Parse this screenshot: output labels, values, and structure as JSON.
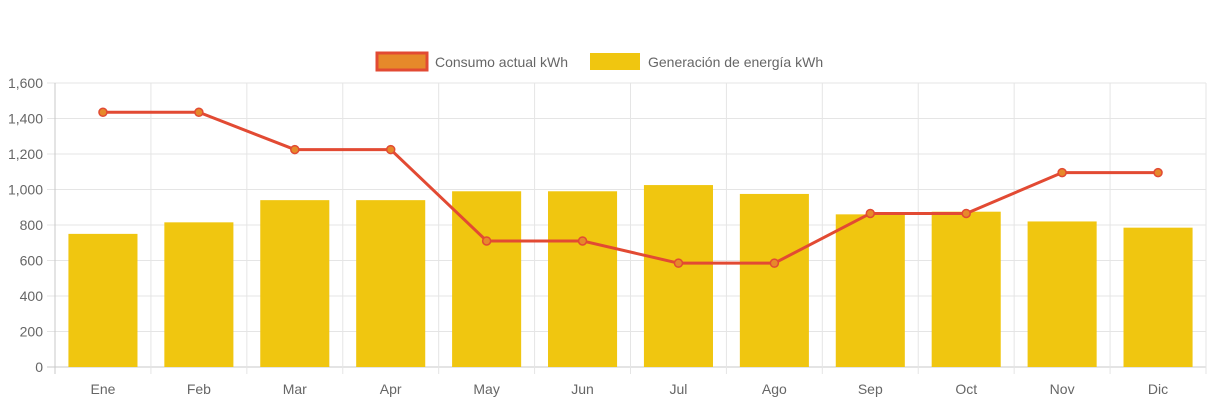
{
  "chart_data": {
    "type": "bar",
    "categories": [
      "Ene",
      "Feb",
      "Mar",
      "Apr",
      "May",
      "Jun",
      "Jul",
      "Ago",
      "Sep",
      "Oct",
      "Nov",
      "Dic"
    ],
    "series": [
      {
        "name": "Consumo actual kWh",
        "type": "line",
        "color": "#e24a33",
        "fill_color": "#e6892a",
        "values": [
          1435,
          1435,
          1225,
          1225,
          710,
          710,
          585,
          585,
          865,
          865,
          1095,
          1095
        ]
      },
      {
        "name": "Generación de energía kWh",
        "type": "bar",
        "color": "#f0c610",
        "values": [
          750,
          815,
          940,
          940,
          990,
          990,
          1025,
          975,
          860,
          875,
          820,
          785
        ]
      }
    ],
    "y_ticks": [
      "0",
      "200",
      "400",
      "600",
      "800",
      "1,000",
      "1,200",
      "1,400",
      "1,600"
    ],
    "ylim": [
      0,
      1600
    ],
    "grid": true,
    "legend_position": "top-center"
  }
}
